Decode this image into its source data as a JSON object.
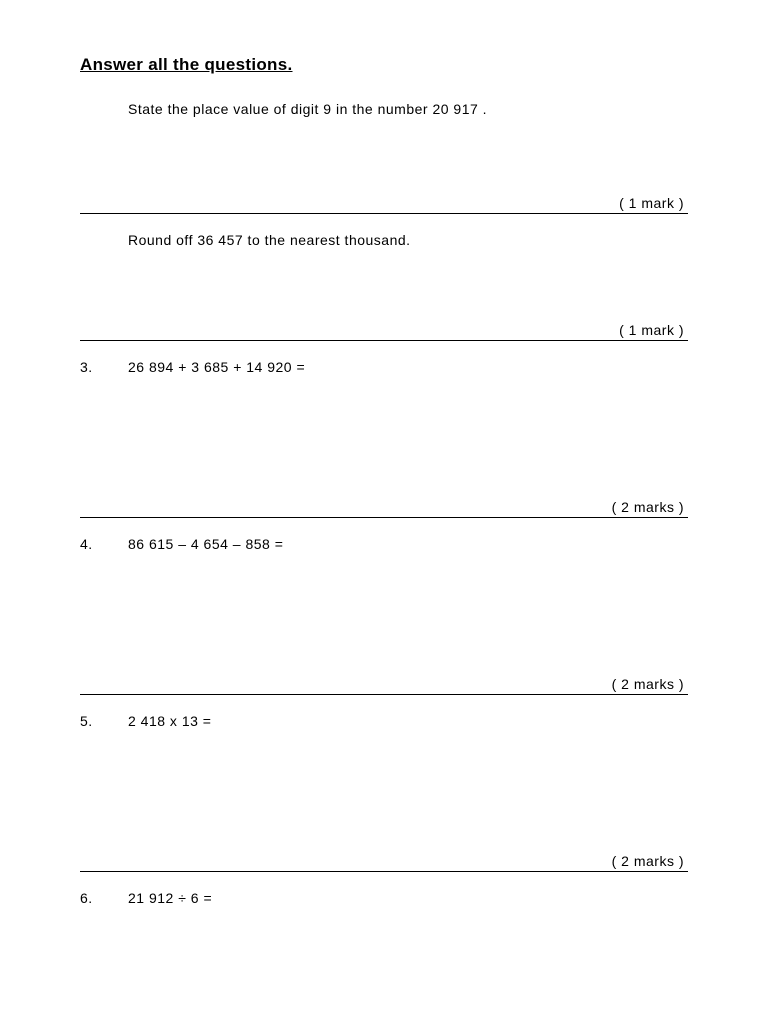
{
  "heading": "Answer all the questions.",
  "questions": [
    {
      "num": "",
      "text": "State the place value of digit 9 in the number 20 917 .",
      "marks": "( 1 mark )",
      "gap": "gap-small",
      "divider": true
    },
    {
      "num": "",
      "text": "Round off 36 457 to the nearest thousand.",
      "marks": "( 1 mark )",
      "gap": "gap-med",
      "divider": true
    },
    {
      "num": "3.",
      "text": "26 894 + 3 685 + 14 920 =",
      "marks": "( 2 marks )",
      "gap": "gap-large",
      "divider": true
    },
    {
      "num": "4.",
      "text": "86 615 – 4 654 – 858 =",
      "marks": "( 2 marks )",
      "gap": "gap-large",
      "divider": true
    },
    {
      "num": "5.",
      "text": "2 418 x 13 =",
      "marks": "( 2 marks )",
      "gap": "gap-large",
      "divider": true
    },
    {
      "num": "6.",
      "text": "21 912 ÷ 6 =",
      "marks": "",
      "gap": "",
      "divider": false
    }
  ]
}
